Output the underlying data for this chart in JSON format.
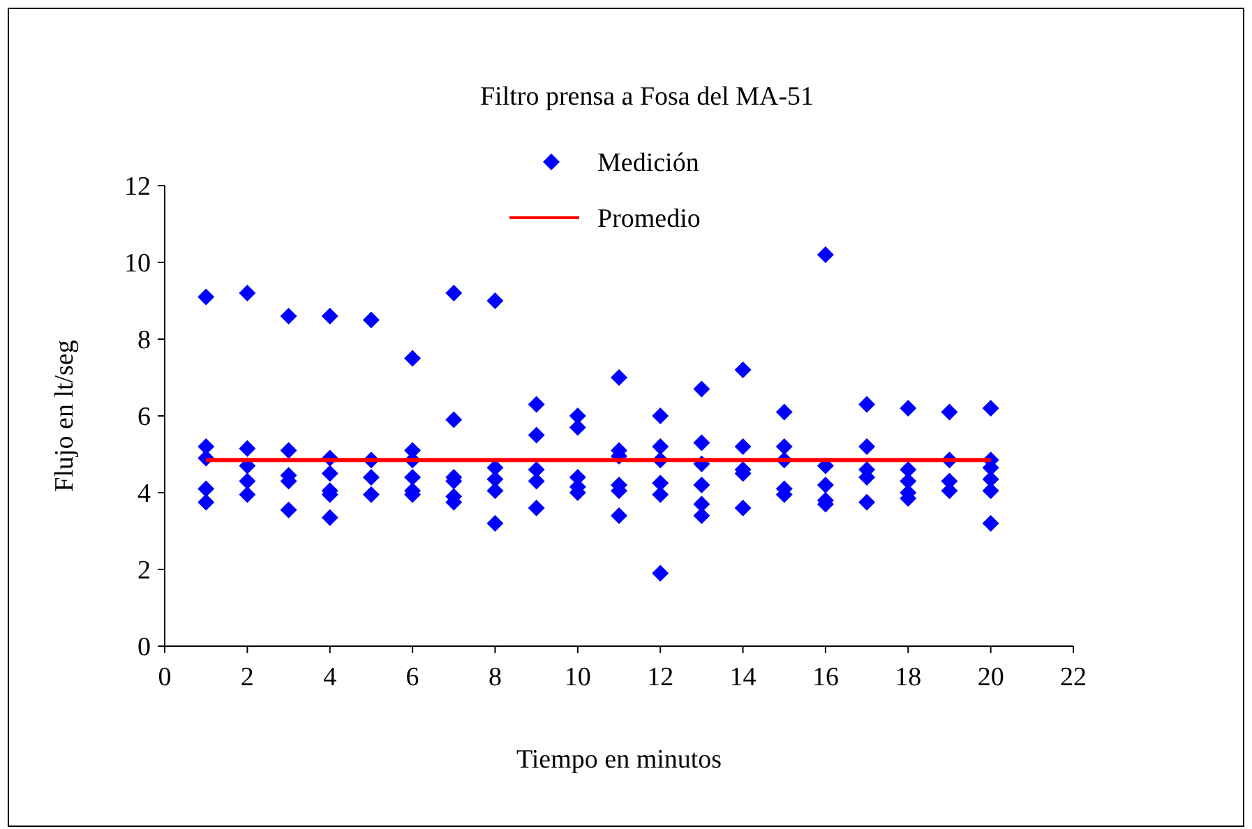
{
  "chart_data": {
    "type": "scatter",
    "title": "Filtro prensa a Fosa del MA-51",
    "xlabel": "Tiempo en minutos",
    "ylabel": "Flujo en lt/seg",
    "xlim": [
      0,
      22
    ],
    "xticks": [
      0,
      2,
      4,
      6,
      8,
      10,
      12,
      14,
      16,
      18,
      20,
      22
    ],
    "ylim": [
      0,
      12
    ],
    "yticks": [
      0,
      2,
      4,
      6,
      8,
      10,
      12
    ],
    "grid": false,
    "legend": "top",
    "marker": "diamond",
    "series": [
      {
        "name": "Medición",
        "color": "#0000ff",
        "x": [
          1,
          1,
          1,
          1,
          1,
          2,
          2,
          2,
          2,
          2,
          3,
          3,
          3,
          3,
          3,
          4,
          4,
          4,
          4,
          4,
          4,
          5,
          5,
          5,
          5,
          6,
          6,
          6,
          6,
          6,
          6,
          7,
          7,
          7,
          7,
          7,
          7,
          8,
          8,
          8,
          8,
          8,
          9,
          9,
          9,
          9,
          9,
          10,
          10,
          10,
          10,
          10,
          11,
          11,
          11,
          11,
          11,
          11,
          12,
          12,
          12,
          12,
          12,
          12,
          13,
          13,
          13,
          13,
          13,
          13,
          14,
          14,
          14,
          14,
          14,
          15,
          15,
          15,
          15,
          15,
          16,
          16,
          16,
          16,
          16,
          17,
          17,
          17,
          17,
          17,
          18,
          18,
          18,
          18,
          18,
          19,
          19,
          19,
          19,
          20,
          20,
          20,
          20,
          20,
          20
        ],
        "values": [
          9.1,
          5.2,
          4.9,
          4.1,
          3.75,
          9.2,
          5.15,
          4.7,
          4.3,
          3.95,
          8.6,
          5.1,
          4.45,
          4.3,
          3.55,
          8.6,
          4.9,
          4.5,
          4.05,
          3.95,
          3.35,
          8.5,
          4.85,
          4.4,
          3.95,
          7.5,
          5.1,
          4.85,
          4.4,
          4.05,
          3.95,
          9.2,
          5.9,
          4.4,
          4.3,
          3.9,
          3.75,
          9.0,
          4.65,
          4.35,
          4.05,
          3.2,
          6.3,
          5.5,
          4.6,
          4.3,
          3.6,
          6.0,
          5.7,
          4.4,
          4.15,
          4.0,
          7.0,
          5.1,
          4.95,
          4.2,
          4.05,
          3.4,
          6.0,
          5.2,
          4.85,
          4.25,
          3.95,
          1.9,
          6.7,
          5.3,
          4.75,
          4.2,
          3.7,
          3.4,
          7.2,
          5.2,
          4.6,
          4.5,
          3.6,
          6.1,
          5.2,
          4.85,
          4.1,
          3.95,
          10.2,
          4.7,
          4.2,
          3.8,
          3.7,
          6.3,
          5.2,
          4.6,
          4.4,
          3.75,
          6.2,
          4.6,
          4.3,
          4.0,
          3.85,
          6.1,
          4.85,
          4.3,
          4.05,
          6.2,
          4.85,
          4.65,
          4.35,
          4.05,
          3.2
        ]
      },
      {
        "name": "Promedio",
        "type": "line",
        "color": "#ff0000",
        "marker": "none",
        "x": [
          1,
          20
        ],
        "values": [
          4.85,
          4.85
        ]
      }
    ]
  }
}
